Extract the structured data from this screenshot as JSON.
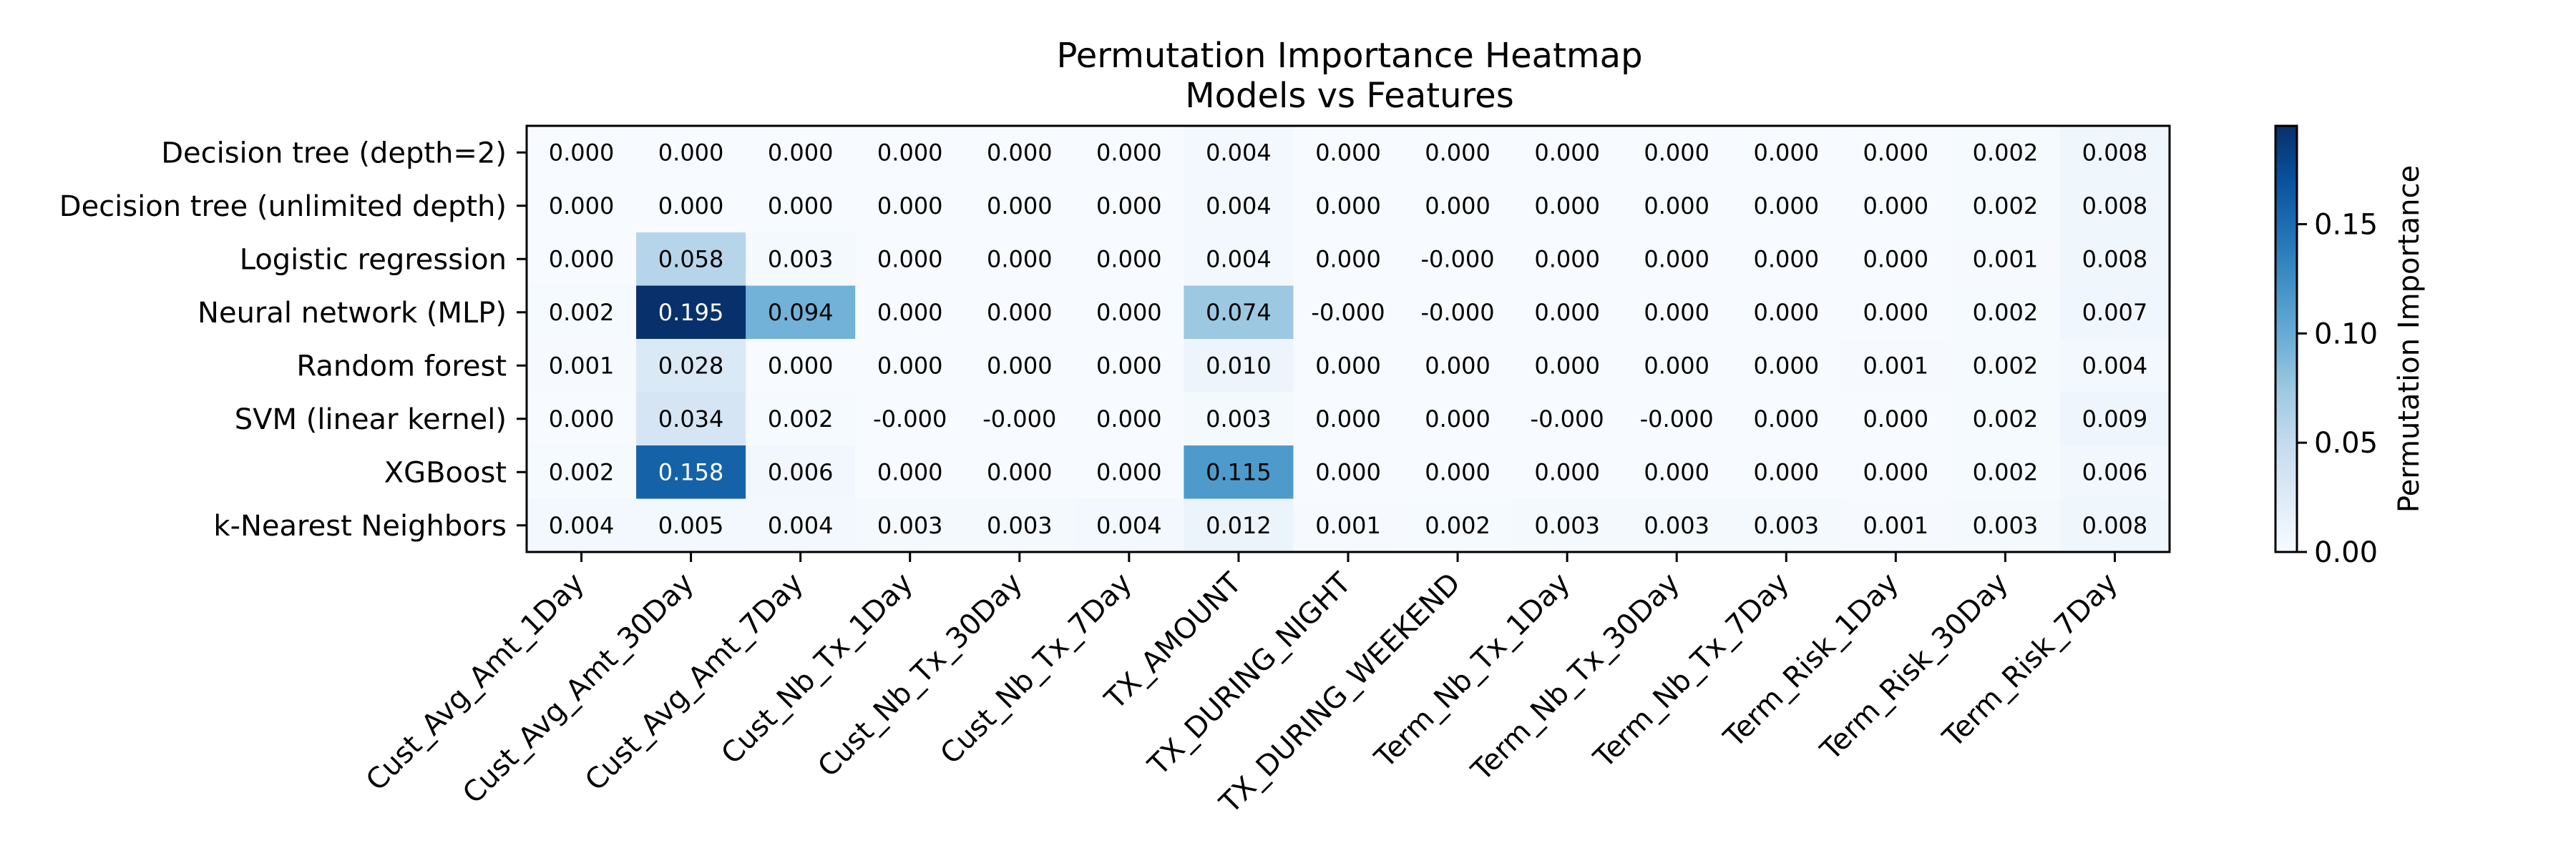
{
  "chart_data": {
    "type": "heatmap",
    "title": "Permutation Importance Heatmap\nModels vs Features",
    "rows": [
      "Decision tree (depth=2)",
      "Decision tree (unlimited depth)",
      "Logistic regression",
      "Neural network (MLP)",
      "Random forest",
      "SVM (linear kernel)",
      "XGBoost",
      "k-Nearest Neighbors"
    ],
    "columns": [
      "Cust_Avg_Amt_1Day",
      "Cust_Avg_Amt_30Day",
      "Cust_Avg_Amt_7Day",
      "Cust_Nb_Tx_1Day",
      "Cust_Nb_Tx_30Day",
      "Cust_Nb_Tx_7Day",
      "TX_AMOUNT",
      "TX_DURING_NIGHT",
      "TX_DURING_WEEKEND",
      "Term_Nb_Tx_1Day",
      "Term_Nb_Tx_30Day",
      "Term_Nb_Tx_7Day",
      "Term_Risk_1Day",
      "Term_Risk_30Day",
      "Term_Risk_7Day"
    ],
    "labels": [
      [
        "0.000",
        "0.000",
        "0.000",
        "0.000",
        "0.000",
        "0.000",
        "0.004",
        "0.000",
        "0.000",
        "0.000",
        "0.000",
        "0.000",
        "0.000",
        "0.002",
        "0.008"
      ],
      [
        "0.000",
        "0.000",
        "0.000",
        "0.000",
        "0.000",
        "0.000",
        "0.004",
        "0.000",
        "0.000",
        "0.000",
        "0.000",
        "0.000",
        "0.000",
        "0.002",
        "0.008"
      ],
      [
        "0.000",
        "0.058",
        "0.003",
        "0.000",
        "0.000",
        "0.000",
        "0.004",
        "0.000",
        "-0.000",
        "0.000",
        "0.000",
        "0.000",
        "0.000",
        "0.001",
        "0.008"
      ],
      [
        "0.002",
        "0.195",
        "0.094",
        "0.000",
        "0.000",
        "0.000",
        "0.074",
        "-0.000",
        "-0.000",
        "0.000",
        "0.000",
        "0.000",
        "0.000",
        "0.002",
        "0.007"
      ],
      [
        "0.001",
        "0.028",
        "0.000",
        "0.000",
        "0.000",
        "0.000",
        "0.010",
        "0.000",
        "0.000",
        "0.000",
        "0.000",
        "0.000",
        "0.001",
        "0.002",
        "0.004"
      ],
      [
        "0.000",
        "0.034",
        "0.002",
        "-0.000",
        "-0.000",
        "0.000",
        "0.003",
        "0.000",
        "0.000",
        "-0.000",
        "-0.000",
        "0.000",
        "0.000",
        "0.002",
        "0.009"
      ],
      [
        "0.002",
        "0.158",
        "0.006",
        "0.000",
        "0.000",
        "0.000",
        "0.115",
        "0.000",
        "0.000",
        "0.000",
        "0.000",
        "0.000",
        "0.000",
        "0.002",
        "0.006"
      ],
      [
        "0.004",
        "0.005",
        "0.004",
        "0.003",
        "0.003",
        "0.004",
        "0.012",
        "0.001",
        "0.002",
        "0.003",
        "0.003",
        "0.003",
        "0.001",
        "0.003",
        "0.008"
      ]
    ],
    "colorbar": {
      "label": "Permutation Importance",
      "min": 0,
      "max": 0.195,
      "ticks": [
        0.0,
        0.05,
        0.1,
        0.15
      ],
      "tick_labels": [
        "0.00",
        "0.05",
        "0.10",
        "0.15"
      ]
    },
    "colormap": "Blues",
    "grid": false
  }
}
